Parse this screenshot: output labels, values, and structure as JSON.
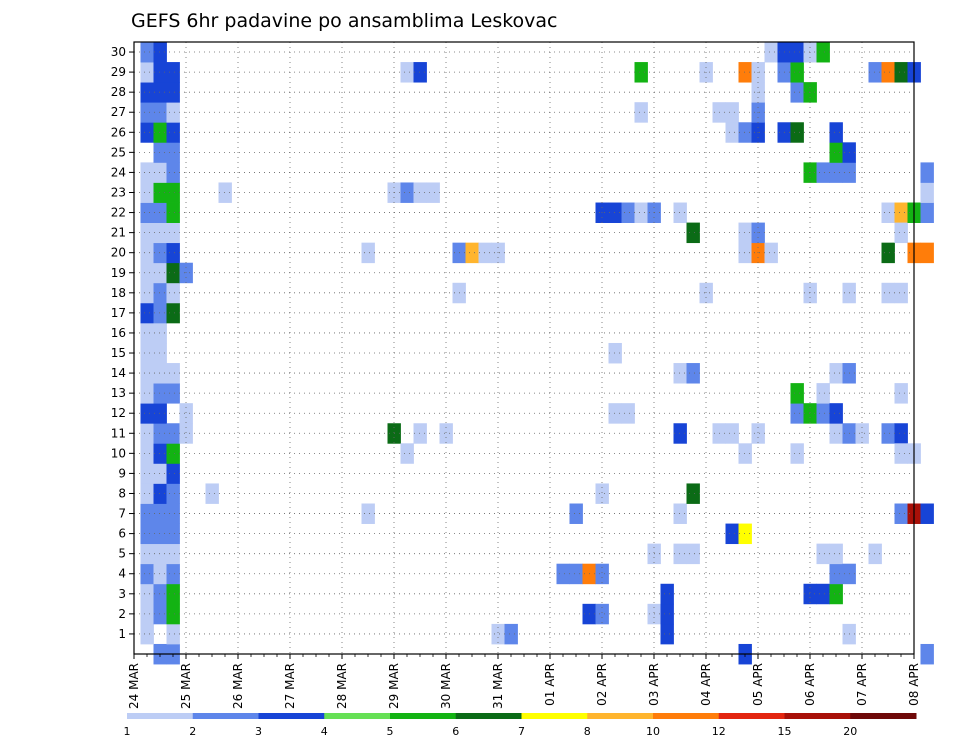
{
  "chart_data": {
    "type": "heatmap",
    "title": "GEFS 6hr padavine po ansamblima Leskovac",
    "y_ticks": [
      "1",
      "2",
      "3",
      "4",
      "5",
      "6",
      "7",
      "8",
      "9",
      "10",
      "11",
      "12",
      "13",
      "14",
      "15",
      "16",
      "17",
      "18",
      "19",
      "20",
      "21",
      "22",
      "23",
      "24",
      "25",
      "26",
      "27",
      "28",
      "29",
      "30"
    ],
    "x_ticks": [
      "24 MAR",
      "25 MAR",
      "26 MAR",
      "27 MAR",
      "28 MAR",
      "29 MAR",
      "30 MAR",
      "31 MAR",
      "01 APR",
      "02 APR",
      "03 APR",
      "04 APR",
      "05 APR",
      "06 APR",
      "07 APR",
      "08 APR"
    ],
    "x_range": [
      "24 MAR",
      "08 APR"
    ],
    "y_range": [
      0,
      30
    ],
    "grid": true,
    "colorbar": {
      "thresholds": [
        "1",
        "2",
        "3",
        "4",
        "5",
        "6",
        "7",
        "8",
        "10",
        "12",
        "15",
        "20"
      ],
      "colors": [
        "#bdcdf5",
        "#5e86ea",
        "#1744d6",
        "#66e055",
        "#13b313",
        "#0b6b16",
        "#ffff00",
        "#ffb52e",
        "#ff7d0a",
        "#e32610",
        "#a81008",
        "#6e0808"
      ]
    },
    "cells": [
      {
        "d": 0.5,
        "m": 0,
        "v": 2
      },
      {
        "d": 0.75,
        "m": 0,
        "v": 2
      },
      {
        "d": 0.25,
        "m": 1,
        "v": 1
      },
      {
        "d": 0.25,
        "m": 2,
        "v": 1
      },
      {
        "d": 0.25,
        "m": 3,
        "v": 1
      },
      {
        "d": 0.25,
        "m": 4,
        "v": 2
      },
      {
        "d": 0.25,
        "m": 5,
        "v": 1
      },
      {
        "d": 0.25,
        "m": 6,
        "v": 2
      },
      {
        "d": 0.25,
        "m": 7,
        "v": 2
      },
      {
        "d": 0.25,
        "m": 8,
        "v": 1
      },
      {
        "d": 0.25,
        "m": 9,
        "v": 1
      },
      {
        "d": 0.25,
        "m": 10,
        "v": 1
      },
      {
        "d": 0.25,
        "m": 11,
        "v": 1
      },
      {
        "d": 0.25,
        "m": 12,
        "v": 3
      },
      {
        "d": 0.25,
        "m": 13,
        "v": 1
      },
      {
        "d": 0.25,
        "m": 14,
        "v": 1
      },
      {
        "d": 0.25,
        "m": 15,
        "v": 1
      },
      {
        "d": 0.25,
        "m": 16,
        "v": 1
      },
      {
        "d": 0.25,
        "m": 17,
        "v": 3
      },
      {
        "d": 0.25,
        "m": 18,
        "v": 1
      },
      {
        "d": 0.25,
        "m": 19,
        "v": 1
      },
      {
        "d": 0.25,
        "m": 20,
        "v": 1
      },
      {
        "d": 0.25,
        "m": 21,
        "v": 1
      },
      {
        "d": 0.25,
        "m": 22,
        "v": 2
      },
      {
        "d": 0.25,
        "m": 23,
        "v": 1
      },
      {
        "d": 0.25,
        "m": 24,
        "v": 1
      },
      {
        "d": 0.25,
        "m": 26,
        "v": 3
      },
      {
        "d": 0.25,
        "m": 27,
        "v": 2
      },
      {
        "d": 0.25,
        "m": 28,
        "v": 3
      },
      {
        "d": 0.25,
        "m": 29,
        "v": 1
      },
      {
        "d": 0.25,
        "m": 30,
        "v": 2
      },
      {
        "d": 0.5,
        "m": 2,
        "v": 2
      },
      {
        "d": 0.5,
        "m": 3,
        "v": 2
      },
      {
        "d": 0.5,
        "m": 4,
        "v": 1
      },
      {
        "d": 0.5,
        "m": 5,
        "v": 1
      },
      {
        "d": 0.5,
        "m": 6,
        "v": 2
      },
      {
        "d": 0.5,
        "m": 7,
        "v": 2
      },
      {
        "d": 0.5,
        "m": 8,
        "v": 3
      },
      {
        "d": 0.5,
        "m": 9,
        "v": 1
      },
      {
        "d": 0.5,
        "m": 10,
        "v": 3
      },
      {
        "d": 0.5,
        "m": 11,
        "v": 2
      },
      {
        "d": 0.5,
        "m": 12,
        "v": 3
      },
      {
        "d": 0.5,
        "m": 13,
        "v": 2
      },
      {
        "d": 0.5,
        "m": 14,
        "v": 1
      },
      {
        "d": 0.5,
        "m": 15,
        "v": 1
      },
      {
        "d": 0.5,
        "m": 16,
        "v": 1
      },
      {
        "d": 0.5,
        "m": 17,
        "v": 2
      },
      {
        "d": 0.5,
        "m": 18,
        "v": 2
      },
      {
        "d": 0.5,
        "m": 19,
        "v": 1
      },
      {
        "d": 0.5,
        "m": 20,
        "v": 2
      },
      {
        "d": 0.5,
        "m": 21,
        "v": 1
      },
      {
        "d": 0.5,
        "m": 22,
        "v": 2
      },
      {
        "d": 0.5,
        "m": 23,
        "v": 5
      },
      {
        "d": 0.5,
        "m": 24,
        "v": 1
      },
      {
        "d": 0.5,
        "m": 25,
        "v": 2
      },
      {
        "d": 0.5,
        "m": 26,
        "v": 5
      },
      {
        "d": 0.5,
        "m": 27,
        "v": 2
      },
      {
        "d": 0.5,
        "m": 28,
        "v": 3
      },
      {
        "d": 0.5,
        "m": 29,
        "v": 3
      },
      {
        "d": 0.5,
        "m": 30,
        "v": 3
      },
      {
        "d": 0.75,
        "m": 1,
        "v": 1
      },
      {
        "d": 0.75,
        "m": 2,
        "v": 5
      },
      {
        "d": 0.75,
        "m": 3,
        "v": 5
      },
      {
        "d": 0.75,
        "m": 4,
        "v": 2
      },
      {
        "d": 0.75,
        "m": 5,
        "v": 1
      },
      {
        "d": 0.75,
        "m": 6,
        "v": 2
      },
      {
        "d": 0.75,
        "m": 7,
        "v": 2
      },
      {
        "d": 0.75,
        "m": 8,
        "v": 2
      },
      {
        "d": 0.75,
        "m": 9,
        "v": 3
      },
      {
        "d": 0.75,
        "m": 10,
        "v": 5
      },
      {
        "d": 0.75,
        "m": 11,
        "v": 2
      },
      {
        "d": 0.75,
        "m": 13,
        "v": 2
      },
      {
        "d": 0.75,
        "m": 14,
        "v": 1
      },
      {
        "d": 0.75,
        "m": 17,
        "v": 6
      },
      {
        "d": 0.75,
        "m": 18,
        "v": 1
      },
      {
        "d": 0.75,
        "m": 19,
        "v": 6
      },
      {
        "d": 0.75,
        "m": 20,
        "v": 3
      },
      {
        "d": 0.75,
        "m": 21,
        "v": 1
      },
      {
        "d": 0.75,
        "m": 22,
        "v": 5
      },
      {
        "d": 0.75,
        "m": 23,
        "v": 5
      },
      {
        "d": 0.75,
        "m": 24,
        "v": 2
      },
      {
        "d": 0.75,
        "m": 25,
        "v": 2
      },
      {
        "d": 0.75,
        "m": 26,
        "v": 3
      },
      {
        "d": 0.75,
        "m": 27,
        "v": 1
      },
      {
        "d": 0.75,
        "m": 28,
        "v": 3
      },
      {
        "d": 0.75,
        "m": 29,
        "v": 3
      },
      {
        "d": 1.0,
        "m": 11,
        "v": 1
      },
      {
        "d": 1.0,
        "m": 12,
        "v": 1
      },
      {
        "d": 1.0,
        "m": 19,
        "v": 2
      },
      {
        "d": 1.5,
        "m": 8,
        "v": 1
      },
      {
        "d": 1.75,
        "m": 23,
        "v": 1
      },
      {
        "d": 4.5,
        "m": 7,
        "v": 1
      },
      {
        "d": 4.5,
        "m": 20,
        "v": 1
      },
      {
        "d": 5.0,
        "m": 11,
        "v": 6
      },
      {
        "d": 5.0,
        "m": 23,
        "v": 1
      },
      {
        "d": 5.25,
        "m": 10,
        "v": 1
      },
      {
        "d": 5.25,
        "m": 23,
        "v": 2
      },
      {
        "d": 5.25,
        "m": 29,
        "v": 1
      },
      {
        "d": 5.5,
        "m": 11,
        "v": 1
      },
      {
        "d": 5.5,
        "m": 23,
        "v": 1
      },
      {
        "d": 5.5,
        "m": 29,
        "v": 3
      },
      {
        "d": 5.75,
        "m": 23,
        "v": 1
      },
      {
        "d": 6.0,
        "m": 11,
        "v": 1
      },
      {
        "d": 6.25,
        "m": 18,
        "v": 1
      },
      {
        "d": 6.25,
        "m": 20,
        "v": 2
      },
      {
        "d": 6.5,
        "m": 20,
        "v": 8
      },
      {
        "d": 6.75,
        "m": 20,
        "v": 1
      },
      {
        "d": 7.0,
        "m": 20,
        "v": 1
      },
      {
        "d": 7.0,
        "m": 1,
        "v": 1
      },
      {
        "d": 7.25,
        "m": 1,
        "v": 2
      },
      {
        "d": 8.25,
        "m": 4,
        "v": 2
      },
      {
        "d": 8.5,
        "m": 4,
        "v": 2
      },
      {
        "d": 8.75,
        "m": 4,
        "v": 10
      },
      {
        "d": 9.0,
        "m": 4,
        "v": 2
      },
      {
        "d": 8.5,
        "m": 7,
        "v": 2
      },
      {
        "d": 8.75,
        "m": 2,
        "v": 3
      },
      {
        "d": 9.0,
        "m": 2,
        "v": 2
      },
      {
        "d": 9.0,
        "m": 8,
        "v": 1
      },
      {
        "d": 9.0,
        "m": 22,
        "v": 3
      },
      {
        "d": 9.25,
        "m": 22,
        "v": 3
      },
      {
        "d": 9.5,
        "m": 22,
        "v": 2
      },
      {
        "d": 9.75,
        "m": 22,
        "v": 1
      },
      {
        "d": 10.0,
        "m": 22,
        "v": 2
      },
      {
        "d": 9.25,
        "m": 15,
        "v": 1
      },
      {
        "d": 9.25,
        "m": 12,
        "v": 1
      },
      {
        "d": 9.5,
        "m": 12,
        "v": 1
      },
      {
        "d": 9.75,
        "m": 27,
        "v": 1
      },
      {
        "d": 9.75,
        "m": 29,
        "v": 5
      },
      {
        "d": 10.0,
        "m": 2,
        "v": 1
      },
      {
        "d": 10.0,
        "m": 5,
        "v": 1
      },
      {
        "d": 10.25,
        "m": 1,
        "v": 3
      },
      {
        "d": 10.25,
        "m": 2,
        "v": 3
      },
      {
        "d": 10.25,
        "m": 3,
        "v": 3
      },
      {
        "d": 10.5,
        "m": 5,
        "v": 1
      },
      {
        "d": 10.5,
        "m": 7,
        "v": 1
      },
      {
        "d": 10.5,
        "m": 11,
        "v": 3
      },
      {
        "d": 10.5,
        "m": 14,
        "v": 1
      },
      {
        "d": 10.5,
        "m": 22,
        "v": 1
      },
      {
        "d": 10.75,
        "m": 5,
        "v": 1
      },
      {
        "d": 10.75,
        "m": 14,
        "v": 2
      },
      {
        "d": 10.75,
        "m": 21,
        "v": 6
      },
      {
        "d": 10.75,
        "m": 8,
        "v": 6
      },
      {
        "d": 11.0,
        "m": 18,
        "v": 1
      },
      {
        "d": 11.0,
        "m": 29,
        "v": 1
      },
      {
        "d": 11.25,
        "m": 11,
        "v": 1
      },
      {
        "d": 11.25,
        "m": 27,
        "v": 1
      },
      {
        "d": 11.5,
        "m": 11,
        "v": 1
      },
      {
        "d": 11.5,
        "m": 27,
        "v": 1
      },
      {
        "d": 11.5,
        "m": 26,
        "v": 1
      },
      {
        "d": 11.5,
        "m": 6,
        "v": 3
      },
      {
        "d": 11.75,
        "m": 6,
        "v": 7
      },
      {
        "d": 11.75,
        "m": 10,
        "v": 1
      },
      {
        "d": 11.75,
        "m": 21,
        "v": 1
      },
      {
        "d": 11.75,
        "m": 20,
        "v": 1
      },
      {
        "d": 11.75,
        "m": 26,
        "v": 2
      },
      {
        "d": 11.75,
        "m": 29,
        "v": 10
      },
      {
        "d": 11.75,
        "m": 0,
        "v": 3
      },
      {
        "d": 12.0,
        "m": 11,
        "v": 1
      },
      {
        "d": 12.0,
        "m": 20,
        "v": 10
      },
      {
        "d": 12.0,
        "m": 21,
        "v": 2
      },
      {
        "d": 12.0,
        "m": 26,
        "v": 3
      },
      {
        "d": 12.0,
        "m": 27,
        "v": 2
      },
      {
        "d": 12.0,
        "m": 28,
        "v": 1
      },
      {
        "d": 12.0,
        "m": 29,
        "v": 1
      },
      {
        "d": 12.25,
        "m": 20,
        "v": 1
      },
      {
        "d": 12.25,
        "m": 30,
        "v": 1
      },
      {
        "d": 12.5,
        "m": 26,
        "v": 3
      },
      {
        "d": 12.5,
        "m": 29,
        "v": 2
      },
      {
        "d": 12.5,
        "m": 30,
        "v": 3
      },
      {
        "d": 12.75,
        "m": 10,
        "v": 1
      },
      {
        "d": 12.75,
        "m": 12,
        "v": 2
      },
      {
        "d": 12.75,
        "m": 13,
        "v": 5
      },
      {
        "d": 12.75,
        "m": 26,
        "v": 6
      },
      {
        "d": 12.75,
        "m": 28,
        "v": 2
      },
      {
        "d": 12.75,
        "m": 29,
        "v": 5
      },
      {
        "d": 12.75,
        "m": 30,
        "v": 3
      },
      {
        "d": 13.0,
        "m": 3,
        "v": 3
      },
      {
        "d": 13.0,
        "m": 12,
        "v": 5
      },
      {
        "d": 13.0,
        "m": 18,
        "v": 1
      },
      {
        "d": 13.0,
        "m": 24,
        "v": 5
      },
      {
        "d": 13.0,
        "m": 28,
        "v": 5
      },
      {
        "d": 13.0,
        "m": 30,
        "v": 1
      },
      {
        "d": 13.25,
        "m": 3,
        "v": 3
      },
      {
        "d": 13.25,
        "m": 5,
        "v": 1
      },
      {
        "d": 13.25,
        "m": 12,
        "v": 2
      },
      {
        "d": 13.25,
        "m": 13,
        "v": 1
      },
      {
        "d": 13.25,
        "m": 24,
        "v": 2
      },
      {
        "d": 13.25,
        "m": 30,
        "v": 5
      },
      {
        "d": 13.5,
        "m": 3,
        "v": 5
      },
      {
        "d": 13.5,
        "m": 4,
        "v": 2
      },
      {
        "d": 13.5,
        "m": 5,
        "v": 1
      },
      {
        "d": 13.5,
        "m": 11,
        "v": 1
      },
      {
        "d": 13.5,
        "m": 12,
        "v": 3
      },
      {
        "d": 13.5,
        "m": 14,
        "v": 1
      },
      {
        "d": 13.5,
        "m": 24,
        "v": 2
      },
      {
        "d": 13.5,
        "m": 25,
        "v": 5
      },
      {
        "d": 13.5,
        "m": 26,
        "v": 3
      },
      {
        "d": 13.75,
        "m": 1,
        "v": 1
      },
      {
        "d": 13.75,
        "m": 4,
        "v": 2
      },
      {
        "d": 13.75,
        "m": 11,
        "v": 2
      },
      {
        "d": 13.75,
        "m": 14,
        "v": 2
      },
      {
        "d": 13.75,
        "m": 18,
        "v": 1
      },
      {
        "d": 13.75,
        "m": 24,
        "v": 2
      },
      {
        "d": 13.75,
        "m": 25,
        "v": 3
      },
      {
        "d": 14.0,
        "m": 11,
        "v": 1
      },
      {
        "d": 14.25,
        "m": 5,
        "v": 1
      },
      {
        "d": 14.25,
        "m": 29,
        "v": 2
      },
      {
        "d": 14.5,
        "m": 18,
        "v": 1
      },
      {
        "d": 14.5,
        "m": 20,
        "v": 6
      },
      {
        "d": 14.5,
        "m": 22,
        "v": 1
      },
      {
        "d": 14.5,
        "m": 11,
        "v": 2
      },
      {
        "d": 14.5,
        "m": 29,
        "v": 10
      },
      {
        "d": 14.75,
        "m": 13,
        "v": 1
      },
      {
        "d": 14.75,
        "m": 18,
        "v": 1
      },
      {
        "d": 14.75,
        "m": 22,
        "v": 8
      },
      {
        "d": 14.75,
        "m": 21,
        "v": 1
      },
      {
        "d": 14.75,
        "m": 29,
        "v": 6
      },
      {
        "d": 14.75,
        "m": 11,
        "v": 3
      },
      {
        "d": 14.75,
        "m": 7,
        "v": 2
      },
      {
        "d": 14.75,
        "m": 10,
        "v": 1
      },
      {
        "d": 15.0,
        "m": 10,
        "v": 1
      },
      {
        "d": 15.0,
        "m": 22,
        "v": 5
      },
      {
        "d": 15.0,
        "m": 29,
        "v": 3
      },
      {
        "d": 15.0,
        "m": 20,
        "v": 10
      },
      {
        "d": 15.0,
        "m": 7,
        "v": 15
      },
      {
        "d": 15.25,
        "m": 20,
        "v": 10
      },
      {
        "d": 15.25,
        "m": 22,
        "v": 2
      },
      {
        "d": 15.25,
        "m": 23,
        "v": 1
      },
      {
        "d": 15.25,
        "m": 24,
        "v": 2
      },
      {
        "d": 15.25,
        "m": 7,
        "v": 3
      },
      {
        "d": 15.25,
        "m": 0,
        "v": 2
      }
    ]
  }
}
